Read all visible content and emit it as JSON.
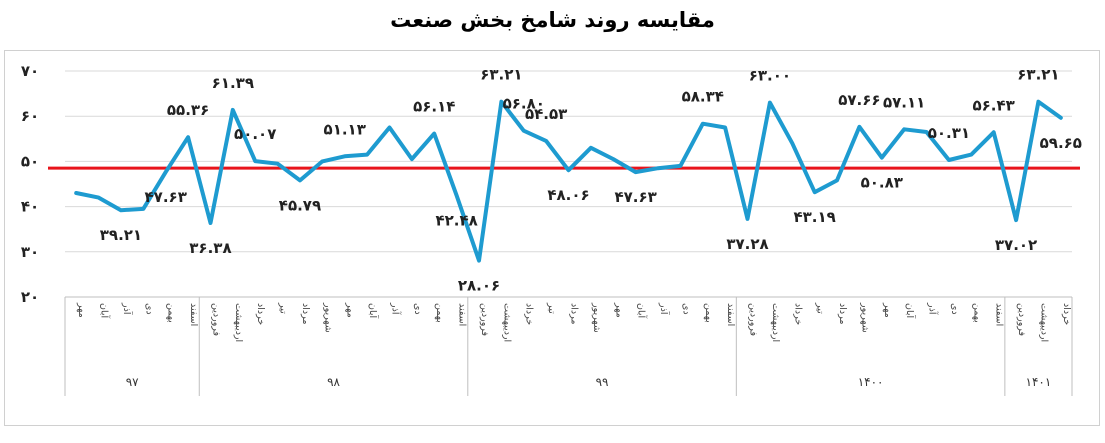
{
  "chart_data": {
    "type": "line",
    "title": "مقایسه روند شامخ بخش صنعت",
    "xlabel": "",
    "ylabel": "",
    "ylim": [
      20,
      70
    ],
    "yticks": [
      "۷۰",
      "۶۰",
      "۵۰",
      "۴۰",
      "۳۰",
      "۲۰"
    ],
    "reference_line": 48.5,
    "colors": {
      "series": "#1e9bd0",
      "reference": "#e8141b",
      "grid": "#d9d9d9"
    },
    "grid": true,
    "categories": [
      "مهر",
      "آبان",
      "آذر",
      "دی",
      "بهمن",
      "اسفند",
      "فروردین",
      "اردیبهشت",
      "خرداد",
      "تیر",
      "مرداد",
      "شهریور",
      "مهر",
      "آبان",
      "آذر",
      "دی",
      "بهمن",
      "اسفند",
      "فروردین",
      "اردیبهشت",
      "خرداد",
      "تیر",
      "مرداد",
      "شهریور",
      "مهر",
      "آبان",
      "آذر",
      "دی",
      "بهمن",
      "اسفند",
      "فروردین",
      "اردیبهشت",
      "خرداد",
      "تیر",
      "مرداد",
      "شهریور",
      "مهر",
      "آبان",
      "آذر",
      "دی",
      "بهمن",
      "اسفند",
      "فروردین",
      "اردیبهشت",
      "خرداد"
    ],
    "years": [
      {
        "label": "۹۷",
        "count": 6
      },
      {
        "label": "۹۸",
        "count": 12
      },
      {
        "label": "۹۹",
        "count": 12
      },
      {
        "label": "۱۴۰۰",
        "count": 12
      },
      {
        "label": "۱۴۰۱",
        "count": 3
      }
    ],
    "values": [
      43.0,
      42.0,
      39.21,
      39.5,
      47.63,
      55.36,
      36.38,
      61.39,
      50.07,
      49.5,
      45.79,
      50.0,
      51.13,
      51.5,
      57.5,
      50.5,
      56.14,
      42.48,
      28.06,
      63.21,
      56.8,
      54.53,
      48.06,
      53.0,
      50.5,
      47.63,
      48.5,
      49.0,
      58.34,
      57.5,
      37.28,
      63.0,
      54.0,
      43.19,
      45.79,
      57.66,
      50.83,
      57.11,
      56.5,
      50.31,
      51.5,
      56.43,
      37.02,
      63.21,
      59.65
    ],
    "data_labels": [
      {
        "index": 2,
        "text": "۳۹.۲۱",
        "pos": "below"
      },
      {
        "index": 4,
        "text": "۴۷.۶۳",
        "pos": "below"
      },
      {
        "index": 5,
        "text": "۵۵.۳۶",
        "pos": "above"
      },
      {
        "index": 6,
        "text": "۳۶.۳۸",
        "pos": "below"
      },
      {
        "index": 7,
        "text": "۶۱.۳۹",
        "pos": "above"
      },
      {
        "index": 8,
        "text": "۵۰.۰۷",
        "pos": "above"
      },
      {
        "index": 10,
        "text": "۴۵.۷۹",
        "pos": "below"
      },
      {
        "index": 12,
        "text": "۵۱.۱۳",
        "pos": "above"
      },
      {
        "index": 16,
        "text": "۵۶.۱۴",
        "pos": "above"
      },
      {
        "index": 17,
        "text": "۴۲.۴۸",
        "pos": "below"
      },
      {
        "index": 18,
        "text": "۲۸.۰۶",
        "pos": "below"
      },
      {
        "index": 19,
        "text": "۶۳.۲۱",
        "pos": "above"
      },
      {
        "index": 20,
        "text": "۵۶.۸۰",
        "pos": "above"
      },
      {
        "index": 21,
        "text": "۵۴.۵۳",
        "pos": "above"
      },
      {
        "index": 22,
        "text": "۴۸.۰۶",
        "pos": "below"
      },
      {
        "index": 25,
        "text": "۴۷.۶۳",
        "pos": "below"
      },
      {
        "index": 28,
        "text": "۵۸.۳۴",
        "pos": "above"
      },
      {
        "index": 30,
        "text": "۳۷.۲۸",
        "pos": "below"
      },
      {
        "index": 31,
        "text": "۶۳.۰۰",
        "pos": "above"
      },
      {
        "index": 33,
        "text": "۴۳.۱۹",
        "pos": "below"
      },
      {
        "index": 35,
        "text": "۵۷.۶۶",
        "pos": "above"
      },
      {
        "index": 36,
        "text": "۵۰.۸۳",
        "pos": "below"
      },
      {
        "index": 37,
        "text": "۵۷.۱۱",
        "pos": "above"
      },
      {
        "index": 39,
        "text": "۵۰.۳۱",
        "pos": "above"
      },
      {
        "index": 41,
        "text": "۵۶.۴۳",
        "pos": "above"
      },
      {
        "index": 42,
        "text": "۳۷.۰۲",
        "pos": "below"
      },
      {
        "index": 43,
        "text": "۶۳.۲۱",
        "pos": "above"
      },
      {
        "index": 44,
        "text": "۵۹.۶۵",
        "pos": "below"
      }
    ]
  }
}
